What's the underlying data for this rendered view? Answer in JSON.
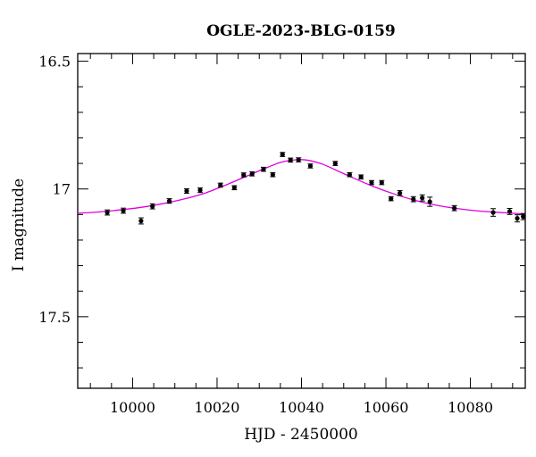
{
  "chart_data": {
    "type": "scatter",
    "title": "OGLE-2023-BLG-0159",
    "xlabel": "HJD - 2450000",
    "ylabel": "I magnitude",
    "xlim": [
      9987,
      10093
    ],
    "ylim": [
      17.78,
      16.47
    ],
    "y_inverted": true,
    "x_ticks": [
      10000,
      10020,
      10040,
      10060,
      10080
    ],
    "x_tick_labels": [
      "10000",
      "10020",
      "10040",
      "10060",
      "10080"
    ],
    "y_ticks": [
      16.5,
      17,
      17.5
    ],
    "y_tick_labels": [
      "16.5",
      "17",
      "17.5"
    ],
    "grid": false,
    "series": [
      {
        "kind": "points_with_errorbars",
        "color": "#000000",
        "x": [
          9994.0,
          9997.8,
          10002.0,
          10004.7,
          10008.7,
          10012.8,
          10016.0,
          10020.8,
          10024.1,
          10026.3,
          10028.3,
          10031.0,
          10033.2,
          10035.5,
          10037.4,
          10039.3,
          10042.1,
          10048.0,
          10051.4,
          10054.1,
          10056.6,
          10059.0,
          10061.2,
          10063.3,
          10066.5,
          10068.6,
          10070.4,
          10076.2,
          10085.4,
          10089.3,
          10091.1,
          10092.5
        ],
        "y": [
          17.092,
          17.085,
          17.125,
          17.068,
          17.047,
          17.008,
          17.005,
          16.985,
          16.995,
          16.945,
          16.941,
          16.923,
          16.944,
          16.865,
          16.887,
          16.886,
          16.91,
          16.9,
          16.944,
          16.953,
          16.975,
          16.975,
          17.038,
          17.016,
          17.04,
          17.035,
          17.05,
          17.075,
          17.092,
          17.088,
          17.115,
          17.108
        ],
        "yerr": [
          0.01,
          0.01,
          0.012,
          0.01,
          0.009,
          0.009,
          0.009,
          0.008,
          0.008,
          0.008,
          0.008,
          0.008,
          0.008,
          0.008,
          0.008,
          0.008,
          0.008,
          0.008,
          0.008,
          0.008,
          0.008,
          0.008,
          0.008,
          0.01,
          0.01,
          0.012,
          0.018,
          0.01,
          0.015,
          0.012,
          0.014,
          0.012
        ]
      },
      {
        "kind": "model_curve",
        "color": "#e000e0",
        "x": [
          9987,
          9992,
          9997,
          10002,
          10007,
          10012,
          10017,
          10022,
          10027,
          10032,
          10035,
          10038,
          10040,
          10042,
          10045,
          10048,
          10052,
          10057,
          10062,
          10067,
          10072,
          10077,
          10082,
          10087,
          10093
        ],
        "y": [
          17.095,
          17.09,
          17.082,
          17.072,
          17.058,
          17.04,
          17.017,
          16.985,
          16.95,
          16.915,
          16.896,
          16.887,
          16.885,
          16.889,
          16.903,
          16.925,
          16.955,
          16.99,
          17.02,
          17.045,
          17.064,
          17.077,
          17.086,
          17.092,
          17.098
        ]
      }
    ]
  }
}
